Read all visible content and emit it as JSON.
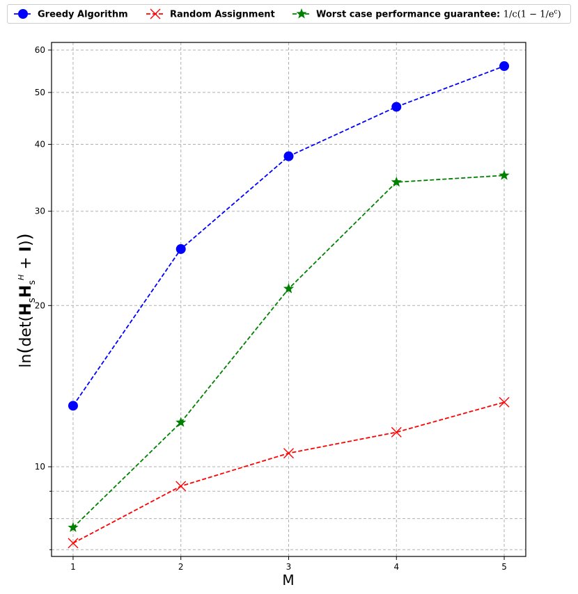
{
  "chart_data": {
    "type": "line",
    "x": [
      1,
      2,
      3,
      4,
      5
    ],
    "xticks": [
      "1",
      "2",
      "3",
      "4",
      "5"
    ],
    "xlim": [
      0.8,
      5.2
    ],
    "yscale": "log",
    "ylim": [
      6.8,
      62
    ],
    "yticks": [
      10,
      20,
      30,
      40,
      50,
      60
    ],
    "yticklabels": [
      "10",
      "20",
      "30",
      "40",
      "50",
      "60"
    ],
    "yminor": [
      6,
      7,
      8,
      9
    ],
    "grid": true,
    "legend_position": "top",
    "xlabel": "M",
    "ylabel": "ln(det(H_s H_s^H + I))",
    "series": [
      {
        "name": "Greedy Algorithm",
        "values": [
          13,
          25.5,
          38,
          47,
          56
        ],
        "color": "#0000ff",
        "marker": "circle",
        "linestyle": "dashed"
      },
      {
        "name": "Random Assignment",
        "values": [
          7.2,
          9.2,
          10.6,
          11.6,
          13.2
        ],
        "color": "#ff0000",
        "marker": "x",
        "linestyle": "dashed"
      },
      {
        "name": "Worst case performance  guarantee: 1/c(1 − 1/e^c)",
        "values": [
          7.7,
          12.1,
          21.5,
          34,
          35
        ],
        "color": "#008000",
        "marker": "star",
        "linestyle": "dashed"
      }
    ]
  }
}
